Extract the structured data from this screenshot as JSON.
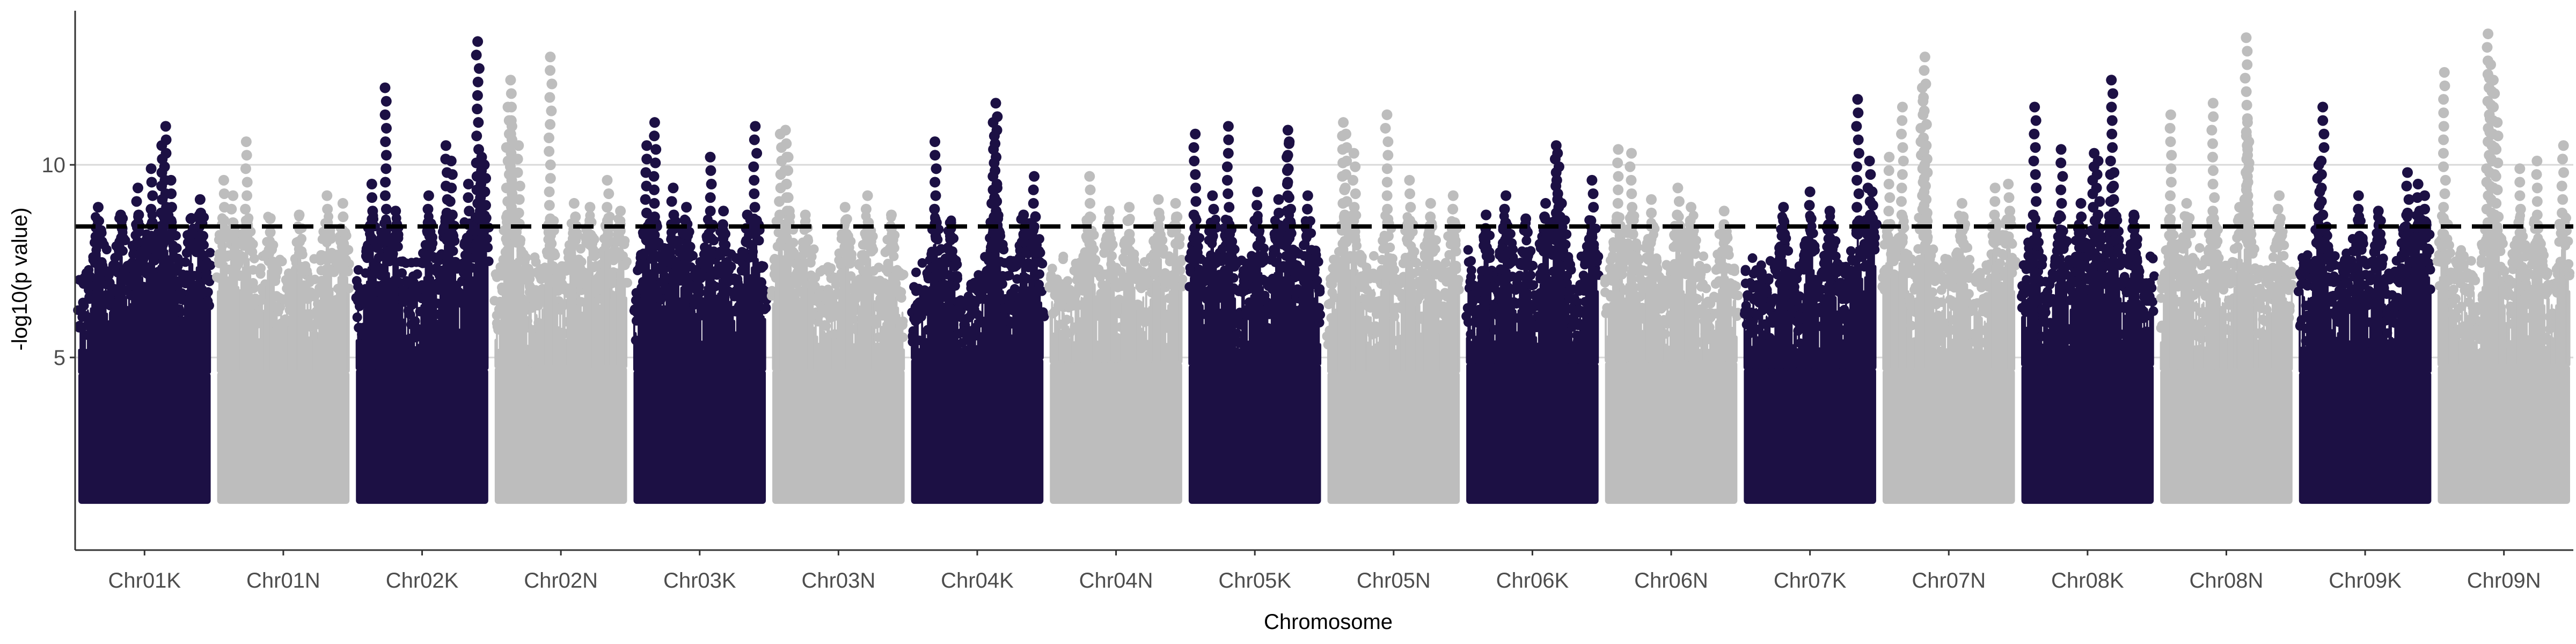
{
  "chart_data": {
    "type": "scatter",
    "title": "",
    "xlabel": "Chromosome",
    "ylabel": "-log10(p value)",
    "ylim": [
      0,
      14
    ],
    "y_ticks": [
      5,
      10
    ],
    "threshold": 8.4,
    "grid": "horizontal major gridlines only",
    "legend": "none",
    "colors": {
      "dark": "#1c1044",
      "light": "#bdbdbd",
      "threshold": "#000000",
      "grid": "#d9d9d9",
      "axis": "#333333"
    },
    "categories": [
      "Chr01K",
      "Chr01N",
      "Chr02K",
      "Chr02N",
      "Chr03K",
      "Chr03N",
      "Chr04K",
      "Chr04N",
      "Chr05K",
      "Chr05N",
      "Chr06K",
      "Chr06N",
      "Chr07K",
      "Chr07N",
      "Chr08K",
      "Chr08N",
      "Chr09K",
      "Chr09N"
    ],
    "series": [
      {
        "color": "dark",
        "chromosome": "Chr01K",
        "peak_points": [
          [
            0.15,
            8.9
          ],
          [
            0.32,
            8.7
          ],
          [
            0.45,
            9.4
          ],
          [
            0.55,
            9.9
          ],
          [
            0.63,
            10.5
          ],
          [
            0.66,
            11.0
          ],
          [
            0.7,
            9.6
          ],
          [
            0.85,
            8.6
          ],
          [
            0.92,
            9.1
          ]
        ]
      },
      {
        "color": "light",
        "chromosome": "Chr01N",
        "peak_points": [
          [
            0.05,
            9.6
          ],
          [
            0.12,
            9.2
          ],
          [
            0.22,
            10.6
          ],
          [
            0.4,
            8.6
          ],
          [
            0.62,
            8.7
          ],
          [
            0.83,
            9.2
          ],
          [
            0.95,
            9.0
          ]
        ]
      },
      {
        "color": "dark",
        "chromosome": "Chr02K",
        "peak_points": [
          [
            0.12,
            9.5
          ],
          [
            0.22,
            12.0
          ],
          [
            0.3,
            8.8
          ],
          [
            0.55,
            9.2
          ],
          [
            0.68,
            10.5
          ],
          [
            0.72,
            10.1
          ],
          [
            0.85,
            9.5
          ],
          [
            0.92,
            13.2
          ],
          [
            0.95,
            10.2
          ],
          [
            0.97,
            10.0
          ]
        ]
      },
      {
        "color": "light",
        "chromosome": "Chr02N",
        "peak_points": [
          [
            0.1,
            11.5
          ],
          [
            0.12,
            12.2
          ],
          [
            0.13,
            11.0
          ],
          [
            0.18,
            10.5
          ],
          [
            0.42,
            12.8
          ],
          [
            0.6,
            9.0
          ],
          [
            0.72,
            8.9
          ],
          [
            0.85,
            9.6
          ],
          [
            0.95,
            8.8
          ]
        ]
      },
      {
        "color": "dark",
        "chromosome": "Chr03K",
        "peak_points": [
          [
            0.1,
            10.5
          ],
          [
            0.16,
            11.1
          ],
          [
            0.3,
            9.4
          ],
          [
            0.4,
            8.9
          ],
          [
            0.58,
            10.2
          ],
          [
            0.68,
            8.8
          ],
          [
            0.86,
            8.7
          ],
          [
            0.92,
            11.0
          ]
        ]
      },
      {
        "color": "light",
        "chromosome": "Chr03N",
        "peak_points": [
          [
            0.06,
            10.8
          ],
          [
            0.1,
            10.9
          ],
          [
            0.12,
            10.2
          ],
          [
            0.25,
            8.7
          ],
          [
            0.55,
            8.9
          ],
          [
            0.72,
            9.2
          ],
          [
            0.9,
            8.7
          ]
        ]
      },
      {
        "color": "dark",
        "chromosome": "Chr04K",
        "peak_points": [
          [
            0.18,
            10.6
          ],
          [
            0.3,
            8.5
          ],
          [
            0.62,
            11.1
          ],
          [
            0.64,
            11.6
          ],
          [
            0.65,
            9.4
          ],
          [
            0.85,
            8.7
          ],
          [
            0.93,
            9.7
          ]
        ]
      },
      {
        "color": "light",
        "chromosome": "Chr04N",
        "peak_points": [
          [
            0.3,
            9.7
          ],
          [
            0.45,
            8.8
          ],
          [
            0.6,
            8.9
          ],
          [
            0.82,
            9.1
          ],
          [
            0.95,
            9.0
          ]
        ]
      },
      {
        "color": "dark",
        "chromosome": "Chr05K",
        "peak_points": [
          [
            0.05,
            10.8
          ],
          [
            0.18,
            9.2
          ],
          [
            0.3,
            11.0
          ],
          [
            0.52,
            9.3
          ],
          [
            0.68,
            9.1
          ],
          [
            0.75,
            10.9
          ],
          [
            0.76,
            10.6
          ],
          [
            0.9,
            9.2
          ]
        ]
      },
      {
        "color": "light",
        "chromosome": "Chr05N",
        "peak_points": [
          [
            0.12,
            11.1
          ],
          [
            0.14,
            10.8
          ],
          [
            0.2,
            10.3
          ],
          [
            0.45,
            11.3
          ],
          [
            0.62,
            9.6
          ],
          [
            0.78,
            9.0
          ],
          [
            0.95,
            9.2
          ]
        ]
      },
      {
        "color": "dark",
        "chromosome": "Chr06K",
        "peak_points": [
          [
            0.15,
            8.7
          ],
          [
            0.3,
            9.2
          ],
          [
            0.45,
            8.6
          ],
          [
            0.6,
            9.0
          ],
          [
            0.68,
            10.5
          ],
          [
            0.69,
            10.3
          ],
          [
            0.72,
            9.0
          ],
          [
            0.95,
            9.6
          ]
        ]
      },
      {
        "color": "light",
        "chromosome": "Chr06N",
        "peak_points": [
          [
            0.1,
            10.4
          ],
          [
            0.2,
            10.3
          ],
          [
            0.35,
            9.1
          ],
          [
            0.55,
            9.4
          ],
          [
            0.65,
            8.9
          ],
          [
            0.9,
            8.8
          ]
        ]
      },
      {
        "color": "dark",
        "chromosome": "Chr07K",
        "peak_points": [
          [
            0.3,
            8.9
          ],
          [
            0.5,
            9.3
          ],
          [
            0.65,
            8.8
          ],
          [
            0.86,
            11.7
          ],
          [
            0.95,
            10.1
          ],
          [
            0.97,
            9.3
          ]
        ]
      },
      {
        "color": "light",
        "chromosome": "Chr07N",
        "peak_points": [
          [
            0.05,
            10.2
          ],
          [
            0.15,
            11.5
          ],
          [
            0.3,
            12.0
          ],
          [
            0.32,
            12.8
          ],
          [
            0.33,
            10.5
          ],
          [
            0.6,
            9.0
          ],
          [
            0.85,
            9.4
          ],
          [
            0.95,
            9.5
          ]
        ]
      },
      {
        "color": "dark",
        "chromosome": "Chr08K",
        "peak_points": [
          [
            0.1,
            11.5
          ],
          [
            0.3,
            10.4
          ],
          [
            0.45,
            9.0
          ],
          [
            0.55,
            10.3
          ],
          [
            0.58,
            10.1
          ],
          [
            0.68,
            12.2
          ],
          [
            0.7,
            9.8
          ],
          [
            0.85,
            8.7
          ]
        ]
      },
      {
        "color": "light",
        "chromosome": "Chr08N",
        "peak_points": [
          [
            0.08,
            11.3
          ],
          [
            0.2,
            9.0
          ],
          [
            0.4,
            11.6
          ],
          [
            0.6,
            8.9
          ],
          [
            0.65,
            13.3
          ],
          [
            0.66,
            11.1
          ],
          [
            0.67,
            10.6
          ],
          [
            0.9,
            9.2
          ]
        ]
      },
      {
        "color": "dark",
        "chromosome": "Chr09K",
        "peak_points": [
          [
            0.15,
            10.0
          ],
          [
            0.18,
            11.5
          ],
          [
            0.45,
            9.2
          ],
          [
            0.6,
            8.8
          ],
          [
            0.82,
            9.8
          ],
          [
            0.9,
            9.5
          ],
          [
            0.95,
            9.2
          ]
        ]
      },
      {
        "color": "light",
        "chromosome": "Chr09N",
        "peak_points": [
          [
            0.05,
            12.4
          ],
          [
            0.38,
            13.4
          ],
          [
            0.4,
            12.6
          ],
          [
            0.42,
            12.2
          ],
          [
            0.45,
            11.1
          ],
          [
            0.62,
            9.9
          ],
          [
            0.75,
            10.1
          ],
          [
            0.95,
            10.5
          ]
        ]
      }
    ]
  }
}
